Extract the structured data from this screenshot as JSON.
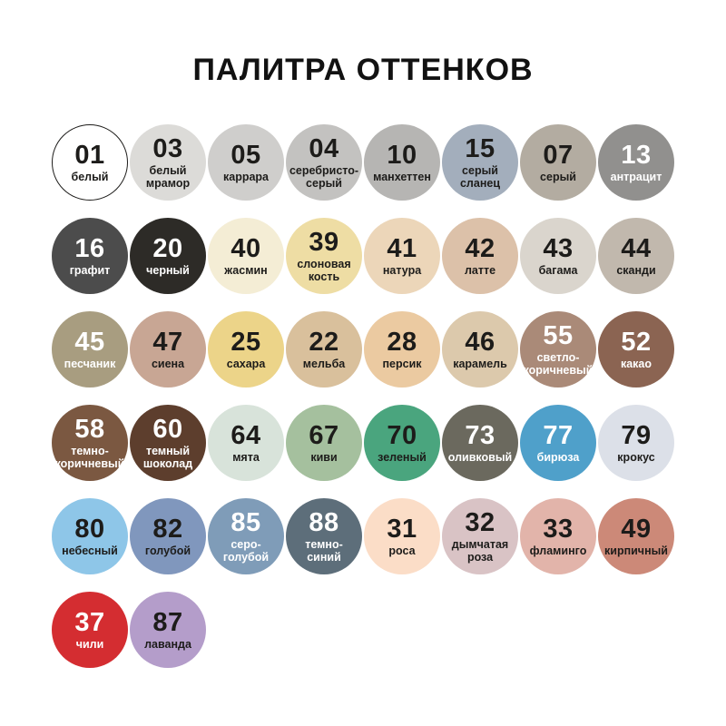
{
  "title": "ПАЛИТРА ОТТЕНКОВ",
  "text_colors": {
    "dark": "#1d1c1a",
    "light": "#ffffff"
  },
  "palette": {
    "rows": [
      {
        "swatches": [
          {
            "code": "01",
            "label": "белый",
            "bg": "#ffffff",
            "text": "dark",
            "border": "#1d1c1a"
          },
          {
            "code": "03",
            "label": "белый\nмрамор",
            "bg": "#dcdbd8",
            "text": "dark"
          },
          {
            "code": "05",
            "label": "каррара",
            "bg": "#cfcecc",
            "text": "dark"
          },
          {
            "code": "04",
            "label": "серебристо-\nсерый",
            "bg": "#c3c2c0",
            "text": "dark"
          },
          {
            "code": "10",
            "label": "манхеттен",
            "bg": "#b6b5b3",
            "text": "dark"
          },
          {
            "code": "15",
            "label": "серый\nсланец",
            "bg": "#a3aebc",
            "text": "dark"
          },
          {
            "code": "07",
            "label": "серый",
            "bg": "#b3aca1",
            "text": "dark"
          },
          {
            "code": "13",
            "label": "антрацит",
            "bg": "#91908e",
            "text": "light"
          }
        ]
      },
      {
        "swatches": [
          {
            "code": "16",
            "label": "графит",
            "bg": "#4c4c4c",
            "text": "light"
          },
          {
            "code": "20",
            "label": "черный",
            "bg": "#2d2b27",
            "text": "light"
          },
          {
            "code": "40",
            "label": "жасмин",
            "bg": "#f4edd5",
            "text": "dark"
          },
          {
            "code": "39",
            "label": "слоновая\nкость",
            "bg": "#eedda4",
            "text": "dark"
          },
          {
            "code": "41",
            "label": "натура",
            "bg": "#ecd6b9",
            "text": "dark"
          },
          {
            "code": "42",
            "label": "латте",
            "bg": "#dcc1a9",
            "text": "dark"
          },
          {
            "code": "43",
            "label": "багама",
            "bg": "#dad5cd",
            "text": "dark"
          },
          {
            "code": "44",
            "label": "сканди",
            "bg": "#c1b8ad",
            "text": "dark"
          }
        ]
      },
      {
        "swatches": [
          {
            "code": "45",
            "label": "песчаник",
            "bg": "#a89d80",
            "text": "light"
          },
          {
            "code": "47",
            "label": "сиена",
            "bg": "#c8a694",
            "text": "dark"
          },
          {
            "code": "25",
            "label": "сахара",
            "bg": "#ecd489",
            "text": "dark"
          },
          {
            "code": "22",
            "label": "мельба",
            "bg": "#d9c09c",
            "text": "dark"
          },
          {
            "code": "28",
            "label": "персик",
            "bg": "#ebcaa1",
            "text": "dark"
          },
          {
            "code": "46",
            "label": "карамель",
            "bg": "#dcc9ac",
            "text": "dark"
          },
          {
            "code": "55",
            "label": "светло-\nкоричневый",
            "bg": "#aa8a78",
            "text": "light"
          },
          {
            "code": "52",
            "label": "какао",
            "bg": "#8b6452",
            "text": "light"
          }
        ]
      },
      {
        "swatches": [
          {
            "code": "58",
            "label": "темно-\nкоричневый",
            "bg": "#7b5841",
            "text": "light"
          },
          {
            "code": "60",
            "label": "темный\nшоколад",
            "bg": "#5d3e2d",
            "text": "light"
          },
          {
            "code": "64",
            "label": "мята",
            "bg": "#d8e3da",
            "text": "dark"
          },
          {
            "code": "67",
            "label": "киви",
            "bg": "#a5c09e",
            "text": "dark"
          },
          {
            "code": "70",
            "label": "зеленый",
            "bg": "#4aa57e",
            "text": "dark"
          },
          {
            "code": "73",
            "label": "оливковый",
            "bg": "#6b695e",
            "text": "light"
          },
          {
            "code": "77",
            "label": "бирюза",
            "bg": "#4fa0ca",
            "text": "light"
          },
          {
            "code": "79",
            "label": "крокус",
            "bg": "#dce0e8",
            "text": "dark"
          }
        ]
      },
      {
        "swatches": [
          {
            "code": "80",
            "label": "небесный",
            "bg": "#8ec6e8",
            "text": "dark"
          },
          {
            "code": "82",
            "label": "голубой",
            "bg": "#8097bd",
            "text": "dark"
          },
          {
            "code": "85",
            "label": "серо-\nголубой",
            "bg": "#7f9cb8",
            "text": "light"
          },
          {
            "code": "88",
            "label": "темно-\nсиний",
            "bg": "#5d6e7a",
            "text": "light"
          },
          {
            "code": "31",
            "label": "роса",
            "bg": "#fbddc7",
            "text": "dark"
          },
          {
            "code": "32",
            "label": "дымчатая\nроза",
            "bg": "#d9c3c5",
            "text": "dark"
          },
          {
            "code": "33",
            "label": "фламинго",
            "bg": "#e2b4aa",
            "text": "dark"
          },
          {
            "code": "49",
            "label": "кирпичный",
            "bg": "#cc8978",
            "text": "dark"
          }
        ]
      },
      {
        "swatches": [
          {
            "code": "37",
            "label": "чили",
            "bg": "#d42d31",
            "text": "light"
          },
          {
            "code": "87",
            "label": "лаванда",
            "bg": "#b49dca",
            "text": "dark"
          }
        ]
      }
    ]
  }
}
